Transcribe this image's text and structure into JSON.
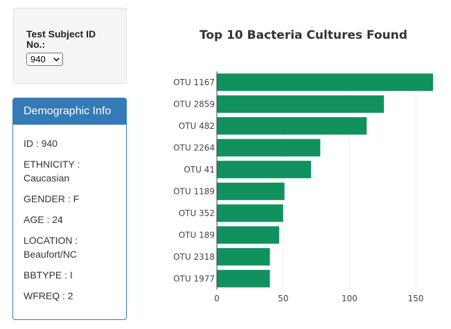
{
  "selector": {
    "label": "Test Subject ID No.:",
    "selected": "940"
  },
  "demographics": {
    "heading": "Demographic Info",
    "items": [
      "ID : 940",
      "ETHNICITY : Caucasian",
      "GENDER : F",
      "AGE : 24",
      "LOCATION : Beaufort/NC",
      "BBTYPE : I",
      "WFREQ : 2"
    ]
  },
  "colors": {
    "bar": "#10915e",
    "panel": "#337ab7"
  },
  "chart_data": {
    "type": "bar",
    "orientation": "horizontal",
    "title": "Top 10 Bacteria Cultures Found",
    "xlabel": "",
    "ylabel": "",
    "categories": [
      "OTU 1167",
      "OTU 2859",
      "OTU 482",
      "OTU 2264",
      "OTU 41",
      "OTU 1189",
      "OTU 352",
      "OTU 189",
      "OTU 2318",
      "OTU 1977"
    ],
    "values": [
      163,
      126,
      113,
      78,
      71,
      51,
      50,
      47,
      40,
      40
    ],
    "xlim": [
      0,
      163
    ],
    "xticks": [
      0,
      50,
      100,
      150
    ],
    "grid": true,
    "legend": "none"
  }
}
